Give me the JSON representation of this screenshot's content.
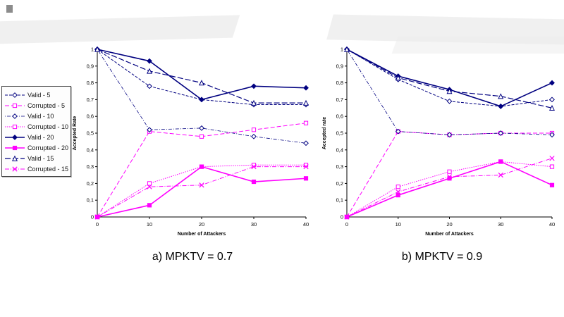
{
  "figure": {
    "captions": {
      "left": "a) MPKTV = 0.7",
      "right": "b) MPKTV = 0.9"
    }
  },
  "colors": {
    "valid": "#000080",
    "corrupted": "#FF00FF",
    "axis": "#000000",
    "streak": "#ececec"
  },
  "legend": {
    "items": [
      {
        "label": "Valid - 5",
        "color": "#000080",
        "dash": "4,2",
        "width": 1,
        "marker": "diamond-open"
      },
      {
        "label": "Corrupted - 5",
        "color": "#FF00FF",
        "dash": "6,3",
        "width": 1,
        "marker": "square-open"
      },
      {
        "label": "Valid - 10",
        "color": "#000080",
        "dash": "1,2,5,2",
        "width": 0.8,
        "marker": "diamond-open"
      },
      {
        "label": "Corrupted - 10",
        "color": "#FF00FF",
        "dash": "1.5,1.5",
        "width": 1,
        "marker": "square-open"
      },
      {
        "label": "Valid - 20",
        "color": "#000080",
        "dash": "",
        "width": 1.6,
        "marker": "diamond-filled"
      },
      {
        "label": "Corrupted - 20",
        "color": "#FF00FF",
        "dash": "",
        "width": 1.6,
        "marker": "square-filled"
      },
      {
        "label": "Valid - 15",
        "color": "#000080",
        "dash": "8,3",
        "width": 1.2,
        "marker": "triangle-open"
      },
      {
        "label": "Corrupted - 15",
        "color": "#FF00FF",
        "dash": "6,2,1,2",
        "width": 1,
        "marker": "x"
      }
    ]
  },
  "chart_data": [
    {
      "type": "line",
      "caption": "a) MPKTV = 0.7",
      "xlabel": "Number of Attackers",
      "ylabel": "Accepted Rate",
      "x": [
        0,
        10,
        20,
        30,
        40
      ],
      "xtick_labels": [
        "0",
        "10",
        "20",
        "30",
        "40"
      ],
      "ylim": [
        0,
        1
      ],
      "yticks": [
        0,
        0.1,
        0.2,
        0.3,
        0.4,
        0.5,
        0.6,
        0.7,
        0.8,
        0.9,
        1
      ],
      "ytick_labels": [
        "0",
        "0,1",
        "0,2",
        "0,3",
        "0,4",
        "0,5",
        "0,6",
        "0,7",
        "0,8",
        "0,9",
        "1"
      ],
      "grid": false,
      "legend_position": "outside-left",
      "series": [
        {
          "name": "Valid - 5",
          "values": [
            1,
            0.78,
            0.7,
            0.67,
            0.67
          ]
        },
        {
          "name": "Corrupted - 5",
          "values": [
            0,
            0.51,
            0.48,
            0.52,
            0.56
          ]
        },
        {
          "name": "Valid - 10",
          "values": [
            1,
            0.52,
            0.53,
            0.48,
            0.44
          ]
        },
        {
          "name": "Corrupted - 10",
          "values": [
            0,
            0.2,
            0.3,
            0.31,
            0.31
          ]
        },
        {
          "name": "Valid - 20",
          "values": [
            1,
            0.93,
            0.7,
            0.78,
            0.77
          ]
        },
        {
          "name": "Corrupted - 20",
          "values": [
            0,
            0.07,
            0.3,
            0.21,
            0.23
          ]
        },
        {
          "name": "Valid - 15",
          "values": [
            1,
            0.87,
            0.8,
            0.68,
            0.68
          ]
        },
        {
          "name": "Corrupted - 15",
          "values": [
            0,
            0.18,
            0.19,
            0.3,
            0.3
          ]
        }
      ]
    },
    {
      "type": "line",
      "caption": "b) MPKTV = 0.9",
      "xlabel": "Number of Attackers",
      "ylabel": "Accepted rate",
      "x": [
        0,
        10,
        20,
        30,
        40
      ],
      "xtick_labels": [
        "0",
        "10",
        "20",
        "30",
        "40"
      ],
      "ylim": [
        0,
        1
      ],
      "yticks": [
        0,
        0.1,
        0.2,
        0.3,
        0.4,
        0.5,
        0.6,
        0.7,
        0.8,
        0.9,
        1
      ],
      "ytick_labels": [
        "0",
        "0,1",
        "0,2",
        "0,3",
        "0,4",
        "0,5",
        "0,6",
        "0,7",
        "0,8",
        "0,9",
        "1"
      ],
      "grid": false,
      "legend_position": "outside-left",
      "series": [
        {
          "name": "Valid - 5",
          "values": [
            1,
            0.82,
            0.69,
            0.66,
            0.7
          ]
        },
        {
          "name": "Corrupted - 5",
          "values": [
            0,
            0.51,
            0.49,
            0.5,
            0.5
          ]
        },
        {
          "name": "Valid - 10",
          "values": [
            1,
            0.51,
            0.49,
            0.5,
            0.49
          ]
        },
        {
          "name": "Corrupted - 10",
          "values": [
            0,
            0.18,
            0.27,
            0.33,
            0.3
          ]
        },
        {
          "name": "Valid - 20",
          "values": [
            1,
            0.84,
            0.76,
            0.66,
            0.8
          ]
        },
        {
          "name": "Corrupted - 20",
          "values": [
            0,
            0.13,
            0.23,
            0.33,
            0.19
          ]
        },
        {
          "name": "Valid - 15",
          "values": [
            1,
            0.83,
            0.75,
            0.72,
            0.65
          ]
        },
        {
          "name": "Corrupted - 15",
          "values": [
            0,
            0.15,
            0.24,
            0.25,
            0.35
          ]
        }
      ]
    }
  ]
}
